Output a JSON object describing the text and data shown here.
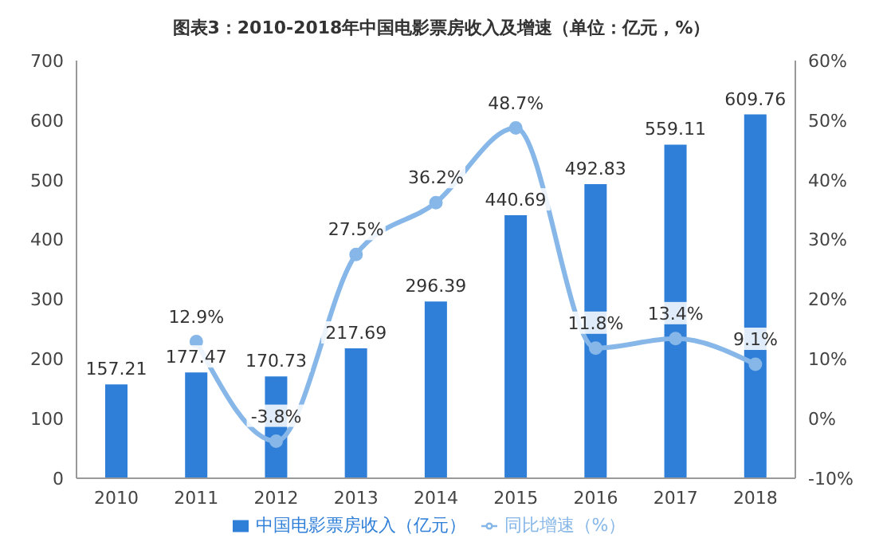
{
  "chart_data": {
    "type": "bar",
    "title": "图表3：2010-2018年中国电影票房收入及增速（单位：亿元，%）",
    "categories": [
      "2010",
      "2011",
      "2012",
      "2013",
      "2014",
      "2015",
      "2016",
      "2017",
      "2018"
    ],
    "series": [
      {
        "name": "中国电影票房收入（亿元）",
        "type": "bar",
        "color": "#2f7fd8",
        "values": [
          157.21,
          177.47,
          170.73,
          217.69,
          296.39,
          440.69,
          492.83,
          559.11,
          609.76
        ],
        "value_labels": [
          "157.21",
          "177.47",
          "170.73",
          "217.69",
          "296.39",
          "440.69",
          "492.83",
          "559.11",
          "609.76"
        ]
      },
      {
        "name": "同比增速（%）",
        "type": "line",
        "axis": "y2",
        "color": "#86b7e8",
        "values": [
          null,
          12.9,
          -3.8,
          27.5,
          36.2,
          48.7,
          11.8,
          13.4,
          9.1
        ],
        "value_labels": [
          null,
          "12.9%",
          "-3.8%",
          "27.5%",
          "36.2%",
          "48.7%",
          "11.8%",
          "13.4%",
          "9.1%"
        ]
      }
    ],
    "ylim": [
      0,
      700
    ],
    "yticks": [
      0,
      100,
      200,
      300,
      400,
      500,
      600,
      700
    ],
    "y2lim": [
      -10,
      60
    ],
    "y2ticks": [
      {
        "value": -10,
        "label": "-10%"
      },
      {
        "value": 0,
        "label": "0%"
      },
      {
        "value": 10,
        "label": "10%"
      },
      {
        "value": 20,
        "label": "20%"
      },
      {
        "value": 30,
        "label": "30%"
      },
      {
        "value": 40,
        "label": "40%"
      },
      {
        "value": 50,
        "label": "50%"
      },
      {
        "value": 60,
        "label": "60%"
      }
    ],
    "legend": "bottom",
    "marker": "circle"
  }
}
